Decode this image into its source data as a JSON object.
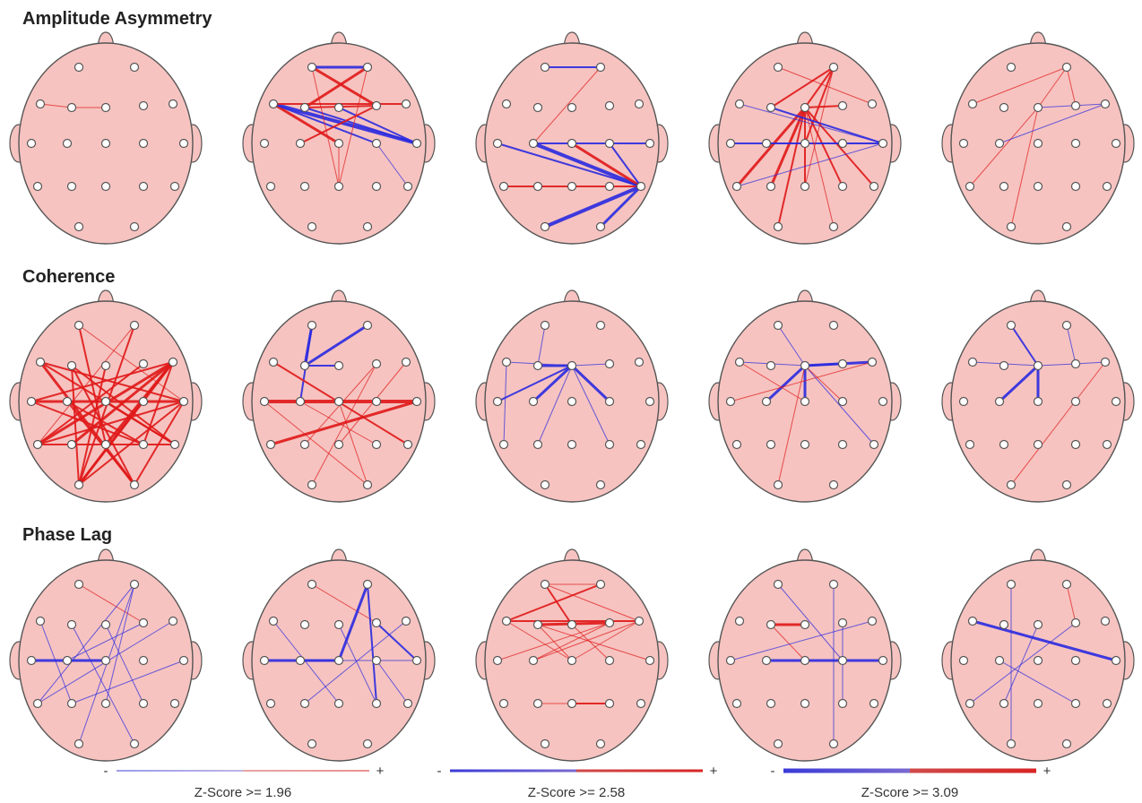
{
  "rows": [
    {
      "title": "Amplitude Asymmetry"
    },
    {
      "title": "Coherence"
    },
    {
      "title": "Phase Lag"
    }
  ],
  "legend": [
    {
      "minus": "-",
      "plus": "+",
      "label": "Z-Score >= 1.96"
    },
    {
      "minus": "-",
      "plus": "+",
      "label": "Z-Score >= 2.58"
    },
    {
      "minus": "-",
      "plus": "+",
      "label": "Z-Score >= 3.09"
    }
  ]
}
